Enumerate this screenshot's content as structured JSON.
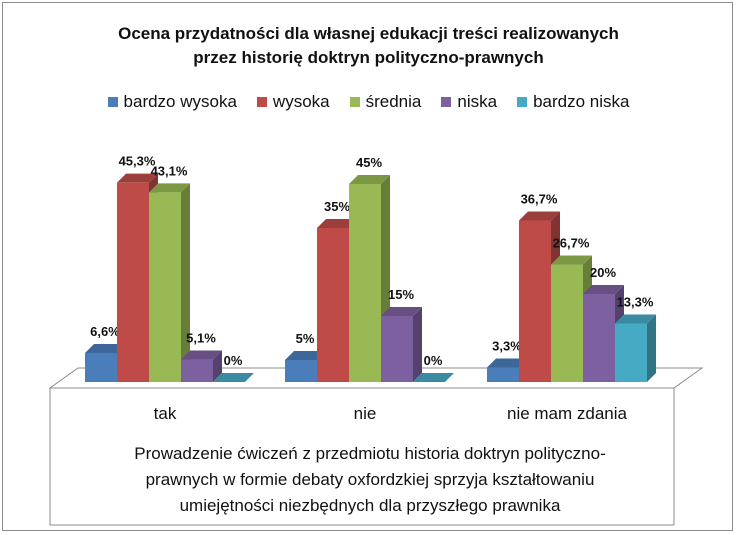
{
  "chart_data": {
    "type": "bar",
    "title_line1": "Ocena przydatności dla własnej edukacji treści realizowanych",
    "title_line2": "przez historię doktryn polityczno-prawnych",
    "categories": [
      "tak",
      "nie",
      "nie mam zdania"
    ],
    "series": [
      {
        "name": "bardzo wysoka",
        "color": "#4a7ebb",
        "values": [
          6.6,
          5,
          3.3
        ],
        "labels": [
          "6,6%",
          "5%",
          "3,3%"
        ]
      },
      {
        "name": "wysoka",
        "color": "#be4b48",
        "values": [
          45.3,
          35,
          36.7
        ],
        "labels": [
          "45,3%",
          "35%",
          "36,7%"
        ]
      },
      {
        "name": "średnia",
        "color": "#98b954",
        "values": [
          43.1,
          45,
          26.7
        ],
        "labels": [
          "43,1%",
          "45%",
          "26,7%"
        ]
      },
      {
        "name": "niska",
        "color": "#7d60a0",
        "values": [
          5.1,
          15,
          20
        ],
        "labels": [
          "5,1%",
          "15%",
          "20%"
        ]
      },
      {
        "name": "bardzo niska",
        "color": "#46aac5",
        "values": [
          0,
          0,
          13.3
        ],
        "labels": [
          "0%",
          "0%",
          "13,3%"
        ]
      }
    ],
    "ylim": [
      0,
      50
    ],
    "grid": false,
    "legend": "top",
    "caption": "Prowadzenie ćwiczeń z przedmiotu historia doktryn polityczno-prawnych w formie debaty oxfordzkiej sprzyja kształtowaniu umiejętności niezbędnych dla przyszłego prawnika",
    "caption_lines": [
      "Prowadzenie ćwiczeń z przedmiotu historia doktryn polityczno-",
      "prawnych w formie debaty oxfordzkiej sprzyja kształtowaniu",
      "umiejętności niezbędnych dla przyszłego prawnika"
    ]
  }
}
